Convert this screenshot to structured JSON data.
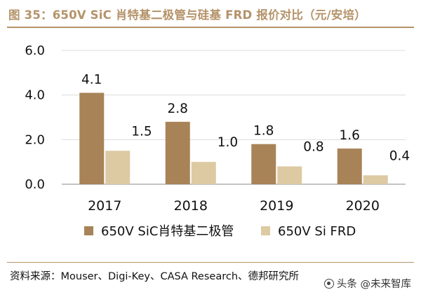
{
  "title": "图 35：650V SiC 肖特基二极管与硅基 FRD 报价对比（元/安培）",
  "source": "资料来源：Mouser、Digi-Key、CASA Research、德邦研究所",
  "watermark": "头条 @未来智库",
  "chart_data": {
    "type": "bar",
    "categories": [
      "2017",
      "2018",
      "2019",
      "2020"
    ],
    "series": [
      {
        "name": "650V SiC肖特基二极管",
        "values": [
          4.1,
          2.8,
          1.8,
          1.6
        ],
        "labels": [
          "4.1",
          "2.8",
          "1.8",
          "1.6"
        ],
        "color": "#a88357"
      },
      {
        "name": "650V Si FRD",
        "values": [
          1.5,
          1.0,
          0.8,
          0.4
        ],
        "labels": [
          "1.5",
          "1.0",
          "0.8",
          "0.4"
        ],
        "color": "#ddcaa3"
      }
    ],
    "ylim": [
      0,
      6
    ],
    "yticks": [
      "0.0",
      "2.0",
      "4.0",
      "6.0"
    ],
    "ytick_values": [
      0,
      2,
      4,
      6
    ],
    "gridlines": true,
    "legend_position": "bottom"
  }
}
